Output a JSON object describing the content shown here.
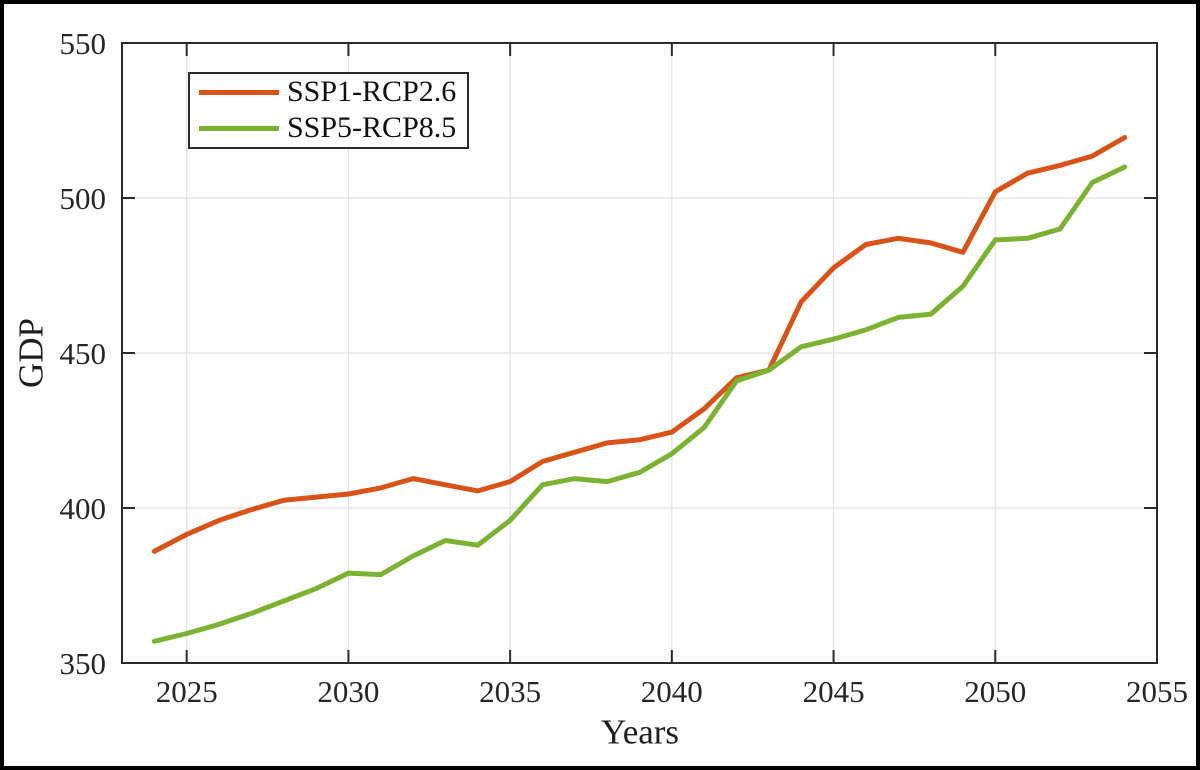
{
  "chart_data": {
    "type": "line",
    "title": "",
    "xlabel": "Years",
    "ylabel": "GDP",
    "xlim": [
      2023,
      2055
    ],
    "ylim": [
      350,
      550
    ],
    "xticks": [
      2025,
      2030,
      2035,
      2040,
      2045,
      2050,
      2055
    ],
    "yticks": [
      350,
      400,
      450,
      500,
      550
    ],
    "grid": true,
    "legend_position": "top-left",
    "x": [
      2024,
      2025,
      2026,
      2027,
      2028,
      2029,
      2030,
      2031,
      2032,
      2033,
      2034,
      2035,
      2036,
      2037,
      2038,
      2039,
      2040,
      2041,
      2042,
      2043,
      2044,
      2045,
      2046,
      2047,
      2048,
      2049,
      2050,
      2051,
      2052,
      2053,
      2054
    ],
    "series": [
      {
        "name": "SSP1-RCP2.6",
        "color": "#D95319",
        "values": [
          386,
          391.5,
          396,
          399.5,
          402.5,
          403.5,
          404.5,
          406.5,
          409.5,
          407.5,
          405.5,
          408.5,
          415,
          418,
          421,
          422,
          424.5,
          432,
          442,
          444.5,
          466.5,
          477.5,
          485,
          487,
          485.5,
          482.5,
          502,
          508,
          510.5,
          513.5,
          519.5
        ]
      },
      {
        "name": "SSP5-RCP8.5",
        "color": "#7CB231",
        "values": [
          357,
          359.5,
          362.5,
          366,
          370,
          374,
          379,
          378.5,
          384.5,
          389.5,
          388,
          396,
          407.5,
          409.5,
          408.5,
          411.5,
          417.5,
          426,
          441,
          444.5,
          452,
          454.5,
          457.5,
          461.5,
          462.5,
          471.5,
          486.5,
          487,
          490,
          505,
          510
        ]
      }
    ],
    "colors": {
      "grid": "#E1E1E1",
      "axis": "#2B2B2B",
      "text": "#262626",
      "background": "#FFFFFF",
      "frame": "#000000"
    }
  }
}
